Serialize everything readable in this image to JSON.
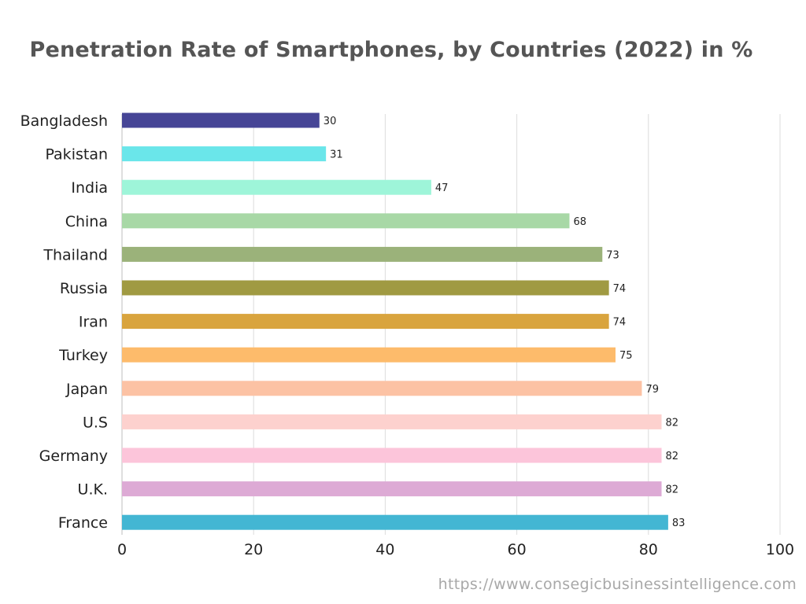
{
  "chart_data": {
    "type": "bar",
    "orientation": "horizontal",
    "title": "Penetration Rate of Smartphones, by Countries (2022) in %",
    "categories": [
      "Bangladesh",
      "Pakistan",
      "India",
      "China",
      "Thailand",
      "Russia",
      "Iran",
      "Turkey",
      "Japan",
      "U.S",
      "Germany",
      "U.K.",
      "France"
    ],
    "values": [
      30,
      31,
      47,
      68,
      73,
      74,
      74,
      75,
      79,
      82,
      82,
      82,
      83
    ],
    "colors": [
      "#464596",
      "#6ae6ea",
      "#9ef5d9",
      "#a8d8a6",
      "#9bb27a",
      "#a09a42",
      "#d9a43e",
      "#fdbb6b",
      "#fcc2a4",
      "#fdd1ce",
      "#fcc5da",
      "#ddaad5",
      "#43b6d3"
    ],
    "xlim": [
      0,
      100
    ],
    "xticks": [
      0,
      20,
      40,
      60,
      80,
      100
    ],
    "grid": true,
    "xlabel": "",
    "ylabel": ""
  },
  "source": {
    "url": "https://www.consegicbusinessintelligence.com"
  }
}
